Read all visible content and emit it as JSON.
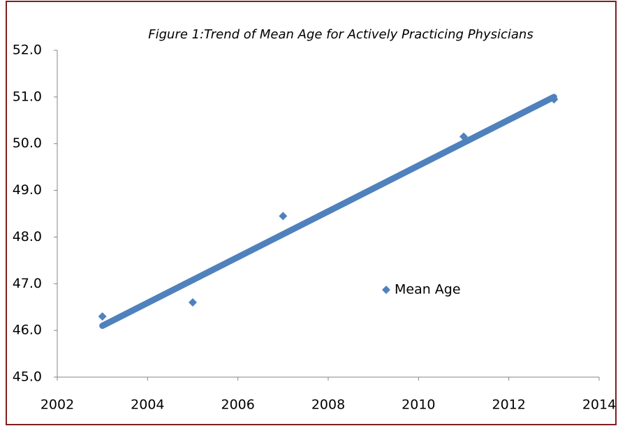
{
  "chart_data": {
    "type": "scatter",
    "title": "Figure 1:Trend of Mean Age for Actively Practicing Physicians",
    "series": [
      {
        "name": "Mean Age",
        "color": "#4f81bd",
        "x": [
          2003,
          2005,
          2007,
          2011,
          2013
        ],
        "values": [
          46.3,
          46.6,
          48.45,
          50.15,
          50.95
        ]
      }
    ],
    "trendline": {
      "color": "#4f81bd",
      "x": [
        2003,
        2013
      ],
      "values": [
        46.1,
        51.0
      ]
    },
    "xlim": [
      2002,
      2014
    ],
    "xticks": [
      2002,
      2004,
      2006,
      2008,
      2010,
      2012,
      2014
    ],
    "ylim": [
      45,
      52
    ],
    "yticks": [
      {
        "value": 45,
        "label": "45.0"
      },
      {
        "value": 46,
        "label": "46.0"
      },
      {
        "value": 47,
        "label": "47.0"
      },
      {
        "value": 48,
        "label": "48.0"
      },
      {
        "value": 49,
        "label": "49.0"
      },
      {
        "value": 50,
        "label": "50.0"
      },
      {
        "value": 51,
        "label": "51.0"
      },
      {
        "value": 52,
        "label": "52.0"
      }
    ],
    "legend": "inside-right"
  }
}
